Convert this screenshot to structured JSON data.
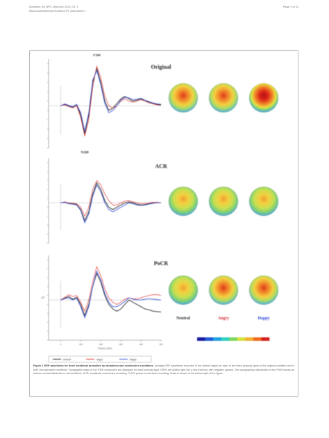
{
  "header": {
    "journal_line": "Quantum Sci NPC Neurosci 2011; 00: 1",
    "doi_line": "https://scientificreports.tested.PC Authorized 1",
    "page": "Page 1 of 11"
  },
  "figure": {
    "panels": [
      {
        "id": "original",
        "title": "Original",
        "peak_top_label": "P300",
        "peak_bottom_label": "N100"
      },
      {
        "id": "acr",
        "title": "ACR"
      },
      {
        "id": "pocr",
        "title": "PoCR"
      }
    ],
    "topo_labels": [
      "Neutral",
      "Angry",
      "Happy"
    ],
    "topo_label_colors": [
      "#222222",
      "#d21f2b",
      "#1f3fd2"
    ],
    "x_tick_labels": [
      "0",
      "100",
      "200",
      "300",
      "400",
      "500"
    ],
    "x_axis_label": "Latency (ms)",
    "y_axis_label": "μV",
    "legend": [
      {
        "name": "neutral",
        "color": "#222222"
      },
      {
        "name": "angry",
        "color": "#e03030"
      },
      {
        "name": "happy",
        "color": "#3a57d8"
      }
    ],
    "colorbar_colors": [
      "#1b1ba0",
      "#1f5bd8",
      "#21a2e0",
      "#2fd0c0",
      "#7ad860",
      "#d8e040",
      "#f0b030",
      "#f06a22",
      "#d2201e"
    ]
  },
  "caption": {
    "title": "Figure 1 ERP waveforms for three emotional prosodies by situational and constructed conditions.",
    "body": "Average ERP waveforms recorded in the central region for each of the three prosody types in the original condition and in both reconstructed conditions. Topographic maps of the P300 component are displayed for each prosody type. ERPs are plotted with the y axis inverted, with negative upward. The topographical distribution of the P300 shows an anterior-central distribution in all conditions. ACR: amplitude-constructed recording; PoCR: phase-constructed recording. Scale is shown at the bottom right of the figure."
  },
  "chart_data": [
    {
      "type": "line",
      "title": "Original",
      "x": [
        0,
        20,
        40,
        60,
        80,
        100,
        120,
        140,
        160,
        180,
        200,
        220,
        240,
        260,
        280,
        300,
        320,
        340,
        360,
        380,
        400,
        420,
        440,
        460,
        480,
        500
      ],
      "series": [
        {
          "name": "neutral",
          "values": [
            0,
            0.3,
            0,
            -0.3,
            0.2,
            -2,
            -6,
            -2,
            5,
            8,
            5,
            1,
            -1,
            -0.5,
            0.5,
            1.5,
            2,
            1.5,
            1,
            1.2,
            1.5,
            1,
            0.8,
            0.5,
            0.3,
            0.2
          ]
        },
        {
          "name": "angry",
          "values": [
            0,
            0.2,
            -0.2,
            -0.5,
            0,
            -2.5,
            -6.5,
            -3,
            4,
            8.5,
            6,
            2,
            0,
            -0.5,
            0,
            1,
            1.5,
            1,
            0.8,
            1,
            1.3,
            1,
            0.6,
            0.4,
            0.2,
            0.1
          ]
        },
        {
          "name": "happy",
          "values": [
            0,
            0.4,
            0.1,
            -0.2,
            0.3,
            -1.5,
            -5.5,
            -1.5,
            5.5,
            7.5,
            4.5,
            0.5,
            -1.5,
            -1,
            0,
            1.2,
            1.8,
            1.7,
            1.3,
            1.4,
            1.6,
            1.2,
            0.9,
            0.6,
            0.4,
            0.3
          ]
        }
      ]
    },
    {
      "type": "line",
      "title": "ACR",
      "x": [
        0,
        20,
        40,
        60,
        80,
        100,
        120,
        140,
        160,
        180,
        200,
        220,
        240,
        260,
        280,
        300,
        320,
        340,
        360,
        380,
        400,
        420,
        440,
        460,
        480,
        500
      ],
      "series": [
        {
          "name": "neutral",
          "values": [
            0,
            0.1,
            -0.1,
            -0.2,
            -0.4,
            -1.5,
            -4,
            -2,
            2,
            4.5,
            3,
            0.5,
            -1,
            -1.5,
            -1,
            -0.5,
            0,
            0.2,
            0,
            -0.3,
            -0.5,
            -0.4,
            -0.2,
            0,
            0.1,
            0
          ]
        },
        {
          "name": "angry",
          "values": [
            0,
            0.2,
            0,
            -0.1,
            -0.2,
            -1,
            -3,
            -1,
            3,
            5,
            4,
            2,
            0.5,
            -0.5,
            -0.5,
            0,
            0.4,
            0.5,
            0.2,
            0,
            -0.2,
            -0.2,
            0,
            0.1,
            0.1,
            0
          ]
        },
        {
          "name": "happy",
          "values": [
            0,
            0.1,
            -0.2,
            -0.3,
            -0.5,
            -1.7,
            -4.5,
            -2.5,
            1.5,
            4,
            2.5,
            0,
            -1.5,
            -2,
            -1.5,
            -1,
            -0.5,
            0,
            -0.2,
            -0.5,
            -0.6,
            -0.5,
            -0.3,
            -0.1,
            0,
            0
          ]
        }
      ]
    },
    {
      "type": "line",
      "title": "PoCR",
      "x": [
        0,
        20,
        40,
        60,
        80,
        100,
        120,
        140,
        160,
        180,
        200,
        220,
        240,
        260,
        280,
        300,
        320,
        340,
        360,
        380,
        400,
        420,
        440,
        460,
        480,
        500
      ],
      "series": [
        {
          "name": "neutral",
          "values": [
            0,
            0.4,
            0.8,
            0.2,
            0.6,
            -1,
            -3.5,
            -1,
            3,
            6,
            4,
            1,
            -1,
            -2,
            -2.5,
            -2,
            -1,
            0,
            -0.5,
            -1,
            -1.5,
            -2,
            -2.2,
            -2.5,
            -2.6,
            -2.7
          ]
        },
        {
          "name": "angry",
          "values": [
            0,
            0.6,
            1.2,
            0.8,
            1,
            -0.5,
            -2.5,
            0,
            4,
            7.5,
            5.5,
            2.5,
            0.5,
            -0.5,
            -1,
            -0.5,
            0.2,
            0.5,
            0.3,
            0.2,
            0.5,
            0.8,
            1,
            1.2,
            1.2,
            1
          ]
        },
        {
          "name": "happy",
          "values": [
            0,
            0.3,
            0.5,
            0,
            0.4,
            -1.5,
            -4,
            -1.5,
            3,
            6.5,
            4.5,
            1.5,
            -0.5,
            -1.5,
            -1.5,
            -1,
            -0.3,
            0.5,
            0.2,
            0,
            0,
            0.2,
            0.3,
            0.2,
            0.1,
            0
          ]
        }
      ]
    }
  ]
}
